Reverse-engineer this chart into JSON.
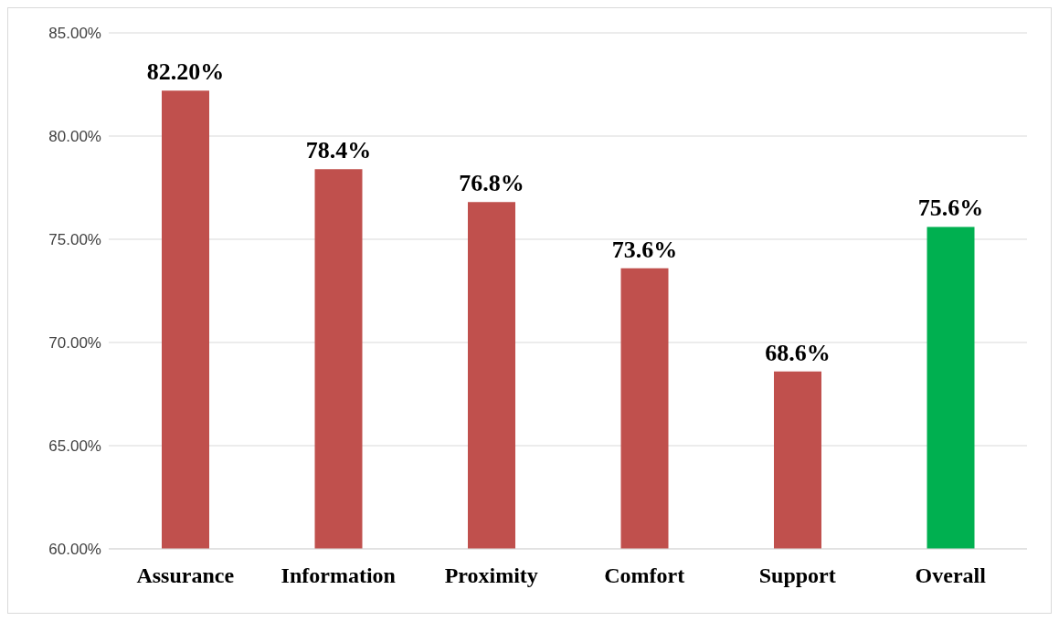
{
  "chart_data": {
    "type": "bar",
    "categories": [
      "Assurance",
      "Information",
      "Proximity",
      "Comfort",
      "Support",
      "Overall"
    ],
    "values": [
      82.2,
      78.4,
      76.8,
      73.6,
      68.6,
      75.6
    ],
    "colors": [
      "#c0504d",
      "#c0504d",
      "#c0504d",
      "#c0504d",
      "#c0504d",
      "#00b050"
    ],
    "value_labels": [
      "82.20%",
      "78.4%",
      "76.8%",
      "73.6%",
      "68.6%",
      "75.6%"
    ],
    "ylim": [
      60,
      85
    ],
    "yticks": [
      {
        "value": 60,
        "label": "60.00%"
      },
      {
        "value": 65,
        "label": "65.00%"
      },
      {
        "value": 70,
        "label": "70.00%"
      },
      {
        "value": 75,
        "label": "75.00%"
      },
      {
        "value": 80,
        "label": "80.00%"
      },
      {
        "value": 85,
        "label": "85.00%"
      }
    ],
    "grid": "y",
    "legend": false
  }
}
